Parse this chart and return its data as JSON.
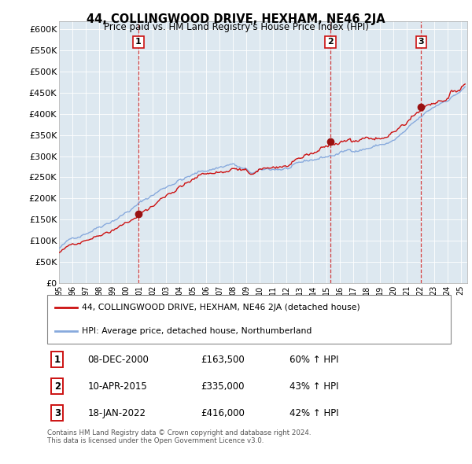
{
  "title": "44, COLLINGWOOD DRIVE, HEXHAM, NE46 2JA",
  "subtitle": "Price paid vs. HM Land Registry's House Price Index (HPI)",
  "property_label": "44, COLLINGWOOD DRIVE, HEXHAM, NE46 2JA (detached house)",
  "hpi_label": "HPI: Average price, detached house, Northumberland",
  "sale_datetimes": [
    "2000-12-08",
    "2015-04-10",
    "2022-01-18"
  ],
  "sale_prices": [
    163500,
    335000,
    416000
  ],
  "sale_dates_display": [
    "08-DEC-2000",
    "10-APR-2015",
    "18-JAN-2022"
  ],
  "sale_prices_display": [
    "£163,500",
    "£335,000",
    "£416,000"
  ],
  "sale_pcts_display": [
    "60% ↑ HPI",
    "43% ↑ HPI",
    "42% ↑ HPI"
  ],
  "property_color": "#cc1111",
  "hpi_color": "#88aadd",
  "marker_color": "#991111",
  "yticks": [
    0,
    50000,
    100000,
    150000,
    200000,
    250000,
    300000,
    350000,
    400000,
    450000,
    500000,
    550000,
    600000
  ],
  "background_color": "#dde8f0",
  "plot_bg_color": "#dde8f0",
  "grid_color": "#ffffff",
  "footer": "Contains HM Land Registry data © Crown copyright and database right 2024.\nThis data is licensed under the Open Government Licence v3.0.",
  "sale_label_numbers": [
    "1",
    "2",
    "3"
  ]
}
